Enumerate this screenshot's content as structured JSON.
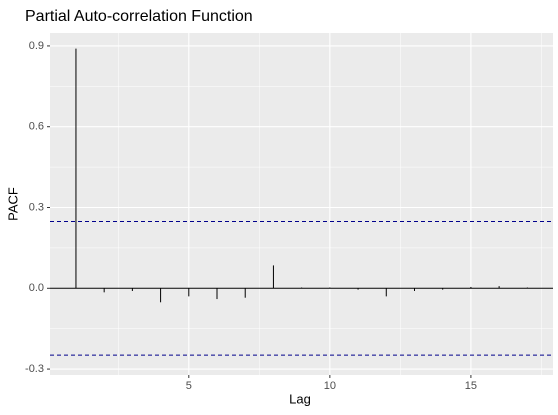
{
  "chart_data": {
    "type": "bar",
    "title": "Partial Auto-correlation Function",
    "x_label": "Lag",
    "y_label": "PACF",
    "x": [
      1,
      2,
      3,
      4,
      5,
      6,
      7,
      8,
      9,
      10,
      11,
      12,
      13,
      14,
      15,
      16,
      17
    ],
    "values": [
      0.89,
      -0.015,
      -0.01,
      -0.052,
      -0.03,
      -0.04,
      -0.035,
      0.085,
      0.003,
      0.003,
      -0.005,
      -0.03,
      -0.01,
      -0.005,
      0.005,
      0.008,
      0.003
    ],
    "color": "#000000",
    "confidence_bounds": [
      0.248,
      -0.248
    ],
    "confidence_color": "#00008b",
    "xlim": [
      0.08,
      17.91
    ],
    "xticks": [
      5,
      10,
      15
    ],
    "xminor": [
      2.5,
      7.5,
      12.5,
      17.5
    ],
    "ylim": [
      -0.322,
      0.948
    ],
    "yticks": [
      -0.3,
      0.0,
      0.3,
      0.6,
      0.9
    ],
    "yminor": [
      -0.15,
      0.15,
      0.45,
      0.75
    ],
    "grid": true
  }
}
